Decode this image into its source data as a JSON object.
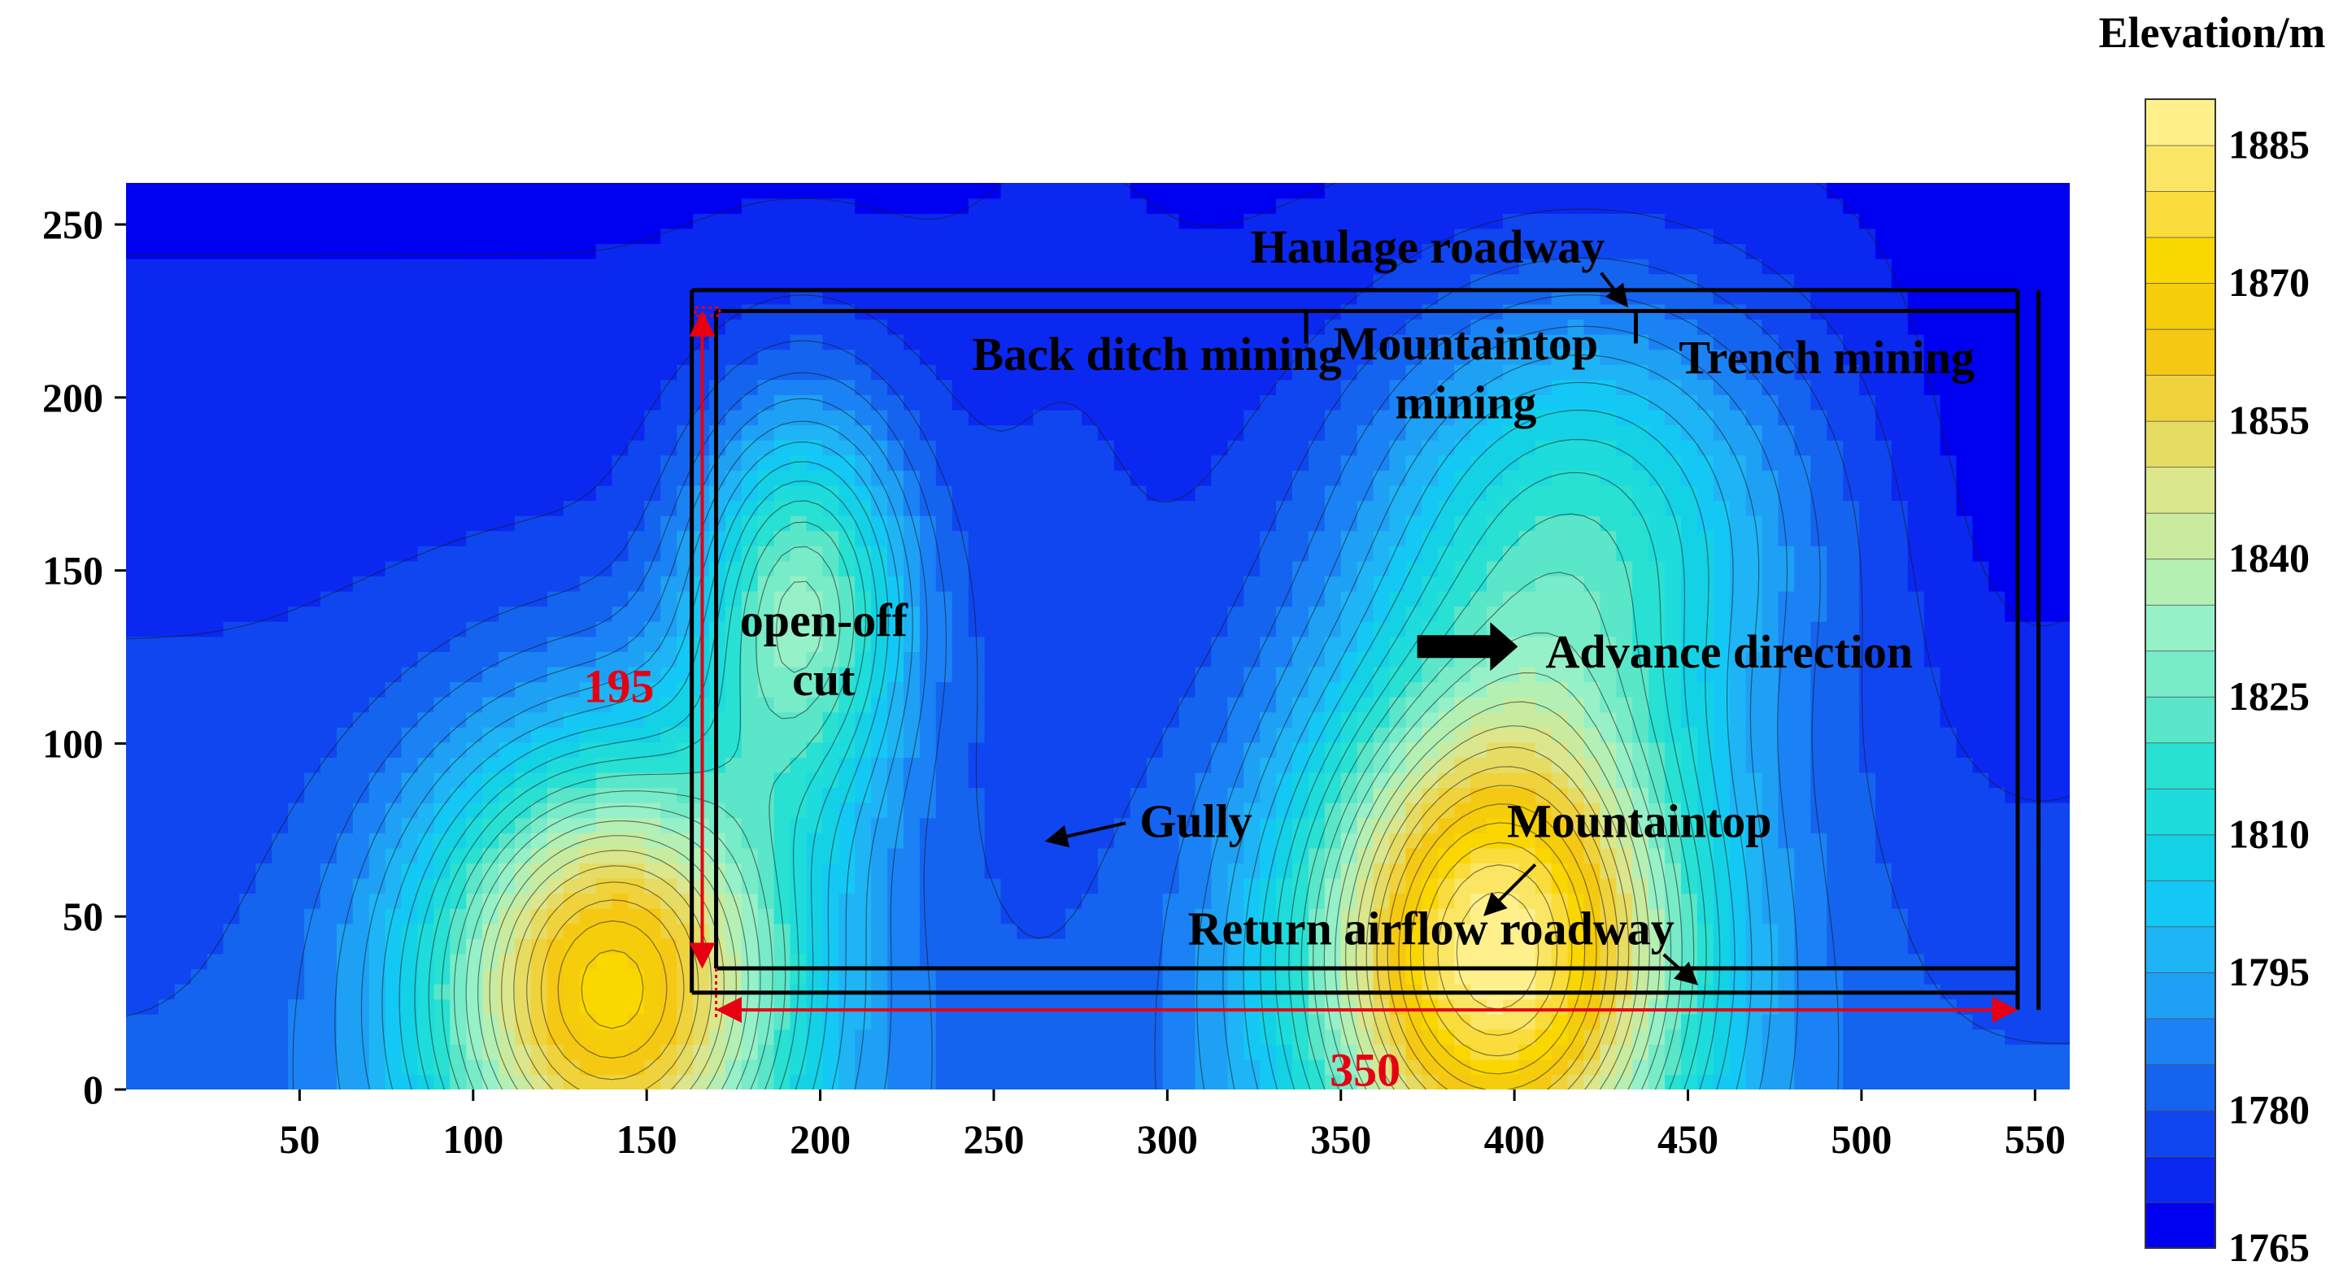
{
  "chart_data": {
    "type": "heatmap",
    "subtype": "filled-contour",
    "xlim": [
      0,
      560
    ],
    "ylim": [
      0,
      262
    ],
    "x_ticks": [
      50,
      100,
      150,
      200,
      250,
      300,
      350,
      400,
      450,
      500,
      550
    ],
    "y_ticks": [
      0,
      50,
      100,
      150,
      200,
      250
    ],
    "colorbar": {
      "title": "Elevation/m",
      "range": [
        1765,
        1890
      ],
      "ticks": [
        1765,
        1780,
        1795,
        1810,
        1825,
        1840,
        1855,
        1870,
        1885
      ],
      "levels": [
        1765,
        1770,
        1775,
        1780,
        1785,
        1790,
        1795,
        1800,
        1805,
        1810,
        1815,
        1820,
        1825,
        1830,
        1835,
        1840,
        1845,
        1850,
        1855,
        1860,
        1865,
        1870,
        1875,
        1880,
        1885,
        1890
      ],
      "colors": [
        "#0000f0",
        "#0a28f0",
        "#0f46f0",
        "#1464f0",
        "#1a82f5",
        "#1ea0f5",
        "#1eb4f5",
        "#14c8f5",
        "#14d2e6",
        "#1edcdc",
        "#28e1d2",
        "#5ae6c8",
        "#78ebc8",
        "#96f0c8",
        "#b4f0b4",
        "#c8eba0",
        "#dce68c",
        "#e6dc64",
        "#f0d23c",
        "#f5c814",
        "#f5cd0a",
        "#fad700",
        "#fadc3c",
        "#fae664",
        "#fff08c",
        "#fff5aa"
      ]
    },
    "surface": {
      "peaks": [
        {
          "x": 140,
          "y": 30,
          "elevation": 1868,
          "sx": 38,
          "sy": 48
        },
        {
          "x": 195,
          "y": 140,
          "elevation": 1830,
          "sx": 22,
          "sy": 40
        },
        {
          "x": 395,
          "y": 40,
          "elevation": 1885,
          "sx": 40,
          "sy": 55
        },
        {
          "x": 420,
          "y": 165,
          "elevation": 1815,
          "sx": 42,
          "sy": 45
        }
      ],
      "valleys": [
        {
          "x": 270,
          "y": 190,
          "elevation": 1778,
          "sx": 18,
          "sy": 60
        },
        {
          "x": 550,
          "y": 190,
          "elevation": 1768,
          "sx": 25,
          "sy": 70
        }
      ],
      "base": {
        "elevation": 1775,
        "slope_x": 0.0,
        "slope_y": -0.045
      }
    },
    "annotations": {
      "haulage_roadway": "Haulage roadway",
      "back_ditch_mining": "Back ditch mining",
      "mountaintop_mining_1": "Mountaintop",
      "mountaintop_mining_2": "mining",
      "trench_mining": "Trench mining",
      "open_off_cut_1": "open-off",
      "open_off_cut_2": "cut",
      "advance_direction": "Advance direction",
      "gully": "Gully",
      "mountaintop": "Mountaintop",
      "return_airflow_roadway": "Return airflow roadway",
      "dim_height": "195",
      "dim_width": "350"
    },
    "panel": {
      "x_start": 170,
      "x_end": 545,
      "y_bottom": 35,
      "y_top": 225,
      "mid_divider_1": 340,
      "mid_divider_2": 435
    },
    "grid": false
  }
}
